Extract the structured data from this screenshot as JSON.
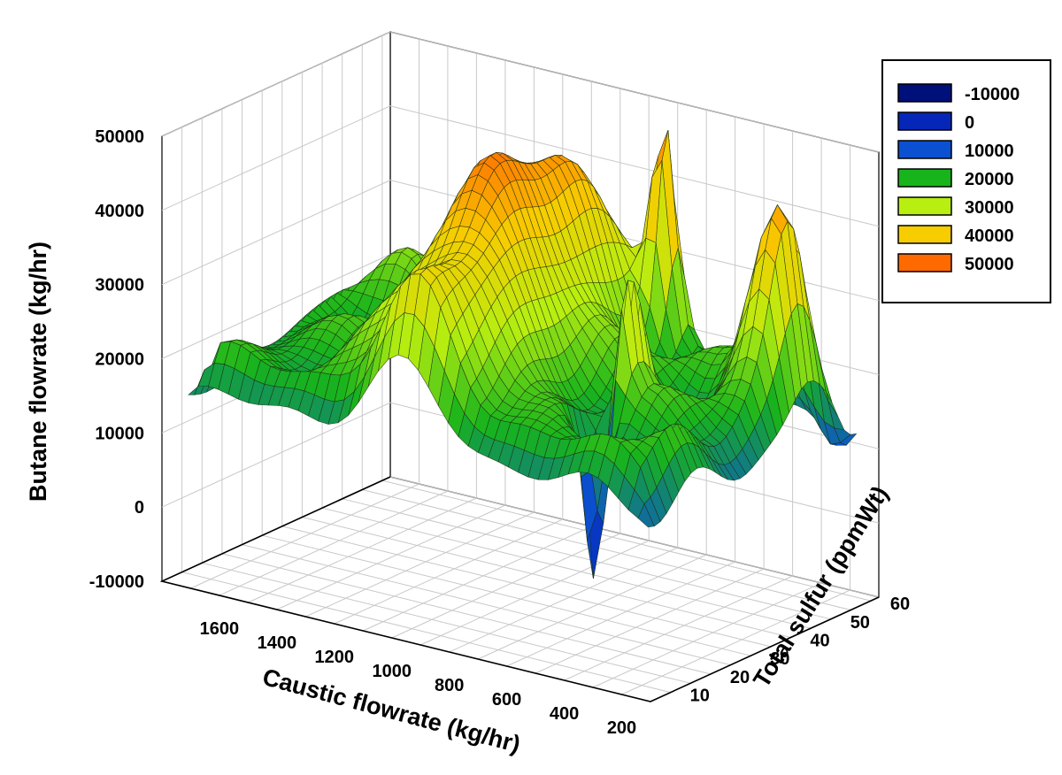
{
  "chart_data": {
    "type": "surface3d",
    "title": "",
    "xlabel": "Caustic flowrate (kg/hr)",
    "ylabel": "Total sulfur (ppmWt)",
    "zlabel": "Butane flowrate (kg/hr)",
    "x_ticks": [
      "1600",
      "1400",
      "1200",
      "1000",
      "800",
      "600",
      "400",
      "200"
    ],
    "y_ticks": [
      "10",
      "20",
      "30",
      "40",
      "50",
      "60"
    ],
    "z_ticks": [
      "-10000",
      "0",
      "10000",
      "20000",
      "30000",
      "40000",
      "50000"
    ],
    "xlim": [
      100,
      1800
    ],
    "ylim": [
      5,
      62
    ],
    "zlim": [
      -10000,
      50000
    ],
    "grid": true,
    "legend_position": "top-right",
    "legend": [
      {
        "label": "-10000",
        "color": "#00107a"
      },
      {
        "label": "0",
        "color": "#0626b8"
      },
      {
        "label": "10000",
        "color": "#0b50d0"
      },
      {
        "label": "20000",
        "color": "#18b41c"
      },
      {
        "label": "30000",
        "color": "#b8ee10"
      },
      {
        "label": "40000",
        "color": "#f7cc00"
      },
      {
        "label": "50000",
        "color": "#ff6a00"
      }
    ],
    "surface_features": [
      {
        "kind": "base plateau",
        "z": 20000
      },
      {
        "kind": "ridge peak",
        "x": 1000,
        "y": 35,
        "z": 47000
      },
      {
        "kind": "spike peak",
        "x": 750,
        "y": 55,
        "z": 44000
      },
      {
        "kind": "peak",
        "x": 250,
        "y": 48,
        "z": 45000
      },
      {
        "kind": "spike",
        "x": 500,
        "y": 28,
        "z": 36000
      },
      {
        "kind": "trough",
        "x": 520,
        "y": 22,
        "z": -7000
      },
      {
        "kind": "trough",
        "x": 1350,
        "y": 48,
        "z": 1000
      },
      {
        "kind": "trough",
        "x": 200,
        "y": 58,
        "z": 12000
      }
    ]
  }
}
